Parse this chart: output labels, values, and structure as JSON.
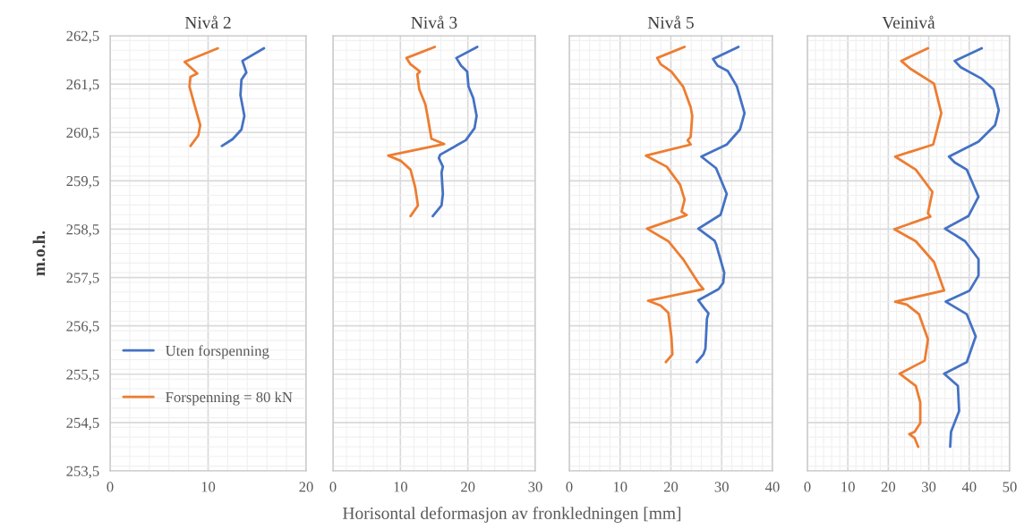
{
  "chart_data": [
    {
      "type": "line",
      "title": "Nivå 2",
      "ylabel": "m.o.h.",
      "xlabel": "Horisontal deformasjon av fronkledningen [mm]",
      "xlim": [
        0,
        20
      ],
      "xticks": [
        0,
        10,
        20
      ],
      "ylim": [
        253.5,
        262.5
      ],
      "yticks": [
        {
          "value": 253.5,
          "label": "253,5"
        },
        {
          "value": 254.5,
          "label": "254,5"
        },
        {
          "value": 255.5,
          "label": "255,5"
        },
        {
          "value": 256.5,
          "label": "256,5"
        },
        {
          "value": 257.5,
          "label": "257,5"
        },
        {
          "value": 258.5,
          "label": "258,5"
        },
        {
          "value": 259.5,
          "label": "259,5"
        },
        {
          "value": 260.5,
          "label": "260,5"
        },
        {
          "value": 261.5,
          "label": "261,5"
        },
        {
          "value": 262.5,
          "label": "262,5"
        }
      ],
      "grid": true,
      "legend": "bottom left",
      "series": [
        {
          "name": "Uten forspenning",
          "color": "#4472c4",
          "x": [
            15.7,
            13.5,
            13.9,
            13.4,
            13.3,
            13.7,
            13.4,
            12.5,
            11.4
          ],
          "values": [
            262.24,
            261.98,
            261.74,
            261.59,
            261.27,
            260.84,
            260.56,
            260.36,
            260.22
          ]
        },
        {
          "name": "Forspenning = 80 kN",
          "color": "#ed7d31",
          "x": [
            11.0,
            7.6,
            8.9,
            8.2,
            8.1,
            8.6,
            9.2,
            9.0,
            8.2
          ],
          "values": [
            262.24,
            261.96,
            261.72,
            261.65,
            261.45,
            261.08,
            260.65,
            260.44,
            260.22
          ]
        }
      ]
    },
    {
      "type": "line",
      "title": "Nivå 3",
      "xlim": [
        0,
        30
      ],
      "xticks": [
        0,
        10,
        20,
        30
      ],
      "ylim": [
        253.5,
        262.5
      ],
      "yticks": [
        253.5,
        254.5,
        255.5,
        256.5,
        257.5,
        258.5,
        259.5,
        260.5,
        261.5,
        262.5
      ],
      "tick_labels": "x",
      "grid": true,
      "series": [
        {
          "color": "#4472c4",
          "x": [
            21.4,
            18.3,
            19.0,
            19.9,
            20.1,
            20.8,
            21.3,
            21.0,
            19.7,
            15.9,
            15.7,
            16.3,
            16.1,
            16.3,
            16.1,
            14.8
          ],
          "values": [
            262.27,
            262.04,
            261.88,
            261.76,
            261.45,
            261.21,
            260.84,
            260.59,
            260.34,
            260.04,
            259.97,
            259.79,
            259.67,
            259.23,
            258.99,
            258.77
          ]
        },
        {
          "color": "#ed7d31",
          "x": [
            15.1,
            10.9,
            11.5,
            12.9,
            12.5,
            12.8,
            13.7,
            14.1,
            14.6,
            16.5,
            8.2,
            10.1,
            11.5,
            12.2,
            12.6,
            11.5
          ],
          "values": [
            262.27,
            262.04,
            261.91,
            261.76,
            261.7,
            261.39,
            261.08,
            260.78,
            260.37,
            260.26,
            260.02,
            259.91,
            259.73,
            259.36,
            258.99,
            258.77
          ]
        }
      ]
    },
    {
      "type": "line",
      "title": "Nivå 5",
      "xlim": [
        0,
        40
      ],
      "xticks": [
        0,
        10,
        20,
        30,
        40
      ],
      "ylim": [
        253.5,
        262.5
      ],
      "yticks": [
        253.5,
        254.5,
        255.5,
        256.5,
        257.5,
        258.5,
        259.5,
        260.5,
        261.5,
        262.5
      ],
      "tick_labels": "x",
      "grid": true,
      "series": [
        {
          "color": "#4472c4",
          "x": [
            33.3,
            28.3,
            29.2,
            31.2,
            33.0,
            34.5,
            33.6,
            31.0,
            26.0,
            28.9,
            31.0,
            29.8,
            25.4,
            28.6,
            28.9,
            30.5,
            30.3,
            29.4,
            25.4,
            26.6,
            27.4,
            27.1,
            26.8,
            26.4,
            25.1
          ],
          "values": [
            262.27,
            262.02,
            261.88,
            261.77,
            261.45,
            260.9,
            260.56,
            260.25,
            260.0,
            259.76,
            259.23,
            258.8,
            258.51,
            258.26,
            258.19,
            257.6,
            257.39,
            257.26,
            257.03,
            256.86,
            256.76,
            256.65,
            256.03,
            255.91,
            255.75
          ]
        },
        {
          "color": "#ed7d31",
          "x": [
            22.7,
            17.3,
            18.0,
            20.1,
            22.4,
            23.9,
            24.2,
            23.9,
            23.3,
            23.9,
            15.1,
            19.2,
            21.8,
            22.7,
            22.1,
            23.1,
            15.3,
            19.5,
            22.4,
            25.4,
            26.4,
            15.5,
            18.0,
            19.5,
            20.1,
            20.3,
            19.0
          ],
          "values": [
            262.27,
            262.04,
            261.91,
            261.76,
            261.45,
            261.02,
            260.84,
            260.41,
            260.34,
            260.25,
            260.02,
            259.79,
            259.42,
            259.11,
            258.86,
            258.79,
            258.51,
            258.25,
            257.88,
            257.39,
            257.26,
            257.02,
            256.92,
            256.77,
            256.28,
            255.91,
            255.75
          ]
        }
      ]
    },
    {
      "type": "line",
      "title": "Veinivå",
      "xlim": [
        0,
        50
      ],
      "xticks": [
        0,
        10,
        20,
        30,
        40,
        50
      ],
      "ylim": [
        253.5,
        262.5
      ],
      "yticks": [
        253.5,
        254.5,
        255.5,
        256.5,
        257.5,
        258.5,
        259.5,
        260.5,
        261.5,
        262.5
      ],
      "tick_labels": "x",
      "grid": true,
      "series": [
        {
          "color": "#4472c4",
          "x": [
            43.1,
            36.4,
            37.9,
            43.1,
            46.0,
            47.3,
            46.4,
            42.3,
            35.0,
            36.4,
            39.4,
            42.3,
            39.8,
            34.0,
            39.0,
            42.3,
            42.3,
            40.1,
            34.2,
            39.4,
            41.6,
            39.4,
            33.8,
            37.2,
            37.5,
            35.5,
            35.3
          ],
          "values": [
            262.24,
            261.98,
            261.85,
            261.61,
            261.39,
            260.96,
            260.65,
            260.31,
            260.0,
            259.88,
            259.73,
            259.17,
            258.77,
            258.51,
            258.25,
            257.88,
            257.54,
            257.23,
            257.0,
            256.74,
            256.28,
            255.75,
            255.51,
            255.26,
            254.74,
            254.31,
            254.0
          ]
        },
        {
          "color": "#ed7d31",
          "x": [
            29.8,
            23.2,
            25.4,
            31.3,
            33.1,
            31.1,
            21.7,
            26.8,
            30.9,
            29.8,
            30.4,
            21.5,
            26.8,
            31.3,
            33.8,
            21.7,
            24.6,
            27.6,
            29.8,
            29.0,
            22.8,
            26.8,
            27.9,
            27.9,
            26.5,
            25.2,
            26.5,
            27.4
          ],
          "values": [
            262.24,
            261.98,
            261.82,
            261.51,
            260.9,
            260.25,
            260.0,
            259.73,
            259.27,
            258.83,
            258.76,
            258.5,
            258.25,
            257.82,
            257.23,
            257.0,
            256.94,
            256.74,
            256.22,
            255.78,
            255.51,
            255.26,
            254.92,
            254.49,
            254.31,
            254.26,
            254.18,
            254.0
          ]
        }
      ]
    }
  ]
}
